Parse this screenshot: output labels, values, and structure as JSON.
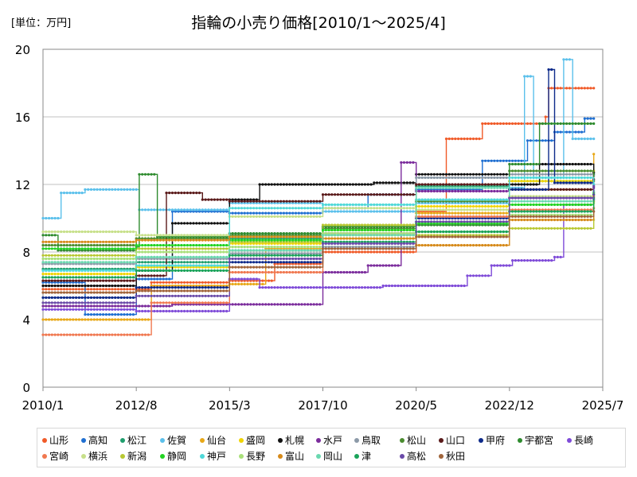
{
  "chart_data": {
    "type": "line",
    "title": "指輪の小売り価格[2010/1～2025/4]",
    "unit_label": "[単位：万円]",
    "xlabel": "",
    "ylabel": "",
    "x_ticks": [
      "2010/1",
      "2012/8",
      "2015/3",
      "2017/10",
      "2020/5",
      "2022/12",
      "2025/7"
    ],
    "y_ticks": [
      0,
      4,
      8,
      12,
      16,
      20
    ],
    "ylim": [
      0,
      20
    ],
    "xlim": [
      "2010/1",
      "2025/7"
    ],
    "grid": "horizontal",
    "legend_position": "bottom",
    "series": [
      {
        "name": "山形",
        "color": "#f05a28",
        "points": [
          [
            "2010/1",
            5.8
          ],
          [
            "2012/8",
            5.8
          ],
          [
            "2013/1",
            6.2
          ],
          [
            "2015/3",
            6.3
          ],
          [
            "2016/6",
            7.3
          ],
          [
            "2017/10",
            8.0
          ],
          [
            "2020/5",
            10.4
          ],
          [
            "2021/3",
            14.7
          ],
          [
            "2022/3",
            15.6
          ],
          [
            "2023/12",
            16.0
          ],
          [
            "2024/1",
            17.7
          ],
          [
            "2025/4",
            17.7
          ]
        ]
      },
      {
        "name": "高知",
        "color": "#1f6fd1",
        "points": [
          [
            "2010/1",
            6.2
          ],
          [
            "2011/3",
            4.3
          ],
          [
            "2012/8",
            6.4
          ],
          [
            "2013/8",
            10.4
          ],
          [
            "2015/3",
            10.3
          ],
          [
            "2017/10",
            10.6
          ],
          [
            "2019/1",
            11.4
          ],
          [
            "2020/5",
            11.7
          ],
          [
            "2022/3",
            13.4
          ],
          [
            "2023/6",
            14.6
          ],
          [
            "2024/3",
            15.1
          ],
          [
            "2025/1",
            15.9
          ],
          [
            "2025/4",
            15.9
          ]
        ]
      },
      {
        "name": "松江",
        "color": "#1f9e6d",
        "points": [
          [
            "2010/1",
            7.0
          ],
          [
            "2012/8",
            7.4
          ],
          [
            "2015/3",
            8.8
          ],
          [
            "2017/10",
            9.1
          ],
          [
            "2020/5",
            11.9
          ],
          [
            "2022/12",
            12.2
          ],
          [
            "2025/4",
            12.6
          ]
        ]
      },
      {
        "name": "佐賀",
        "color": "#5bc0eb",
        "points": [
          [
            "2010/1",
            10.0
          ],
          [
            "2010/7",
            11.5
          ],
          [
            "2011/3",
            11.7
          ],
          [
            "2012/8",
            11.7
          ],
          [
            "2012/9",
            10.5
          ],
          [
            "2015/3",
            10.9
          ],
          [
            "2017/10",
            10.4
          ],
          [
            "2020/5",
            10.9
          ],
          [
            "2022/12",
            11.8
          ],
          [
            "2023/5",
            18.4
          ],
          [
            "2023/8",
            12.4
          ],
          [
            "2024/6",
            19.4
          ],
          [
            "2024/9",
            14.7
          ],
          [
            "2025/4",
            14.7
          ]
        ]
      },
      {
        "name": "仙台",
        "color": "#e8a817",
        "points": [
          [
            "2010/1",
            4.0
          ],
          [
            "2012/8",
            4.0
          ],
          [
            "2013/1",
            6.0
          ],
          [
            "2015/3",
            6.1
          ],
          [
            "2016/3",
            8.2
          ],
          [
            "2017/10",
            9.3
          ],
          [
            "2020/5",
            10.3
          ],
          [
            "2022/12",
            11.7
          ],
          [
            "2025/4",
            13.8
          ]
        ]
      },
      {
        "name": "盛岡",
        "color": "#f0d400",
        "points": [
          [
            "2010/1",
            6.7
          ],
          [
            "2012/8",
            7.1
          ],
          [
            "2015/3",
            8.5
          ],
          [
            "2017/10",
            9.0
          ],
          [
            "2020/5",
            10.7
          ],
          [
            "2022/12",
            12.2
          ],
          [
            "2025/4",
            12.8
          ]
        ]
      },
      {
        "name": "札幌",
        "color": "#111111",
        "points": [
          [
            "2010/1",
            6.0
          ],
          [
            "2012/8",
            6.9
          ],
          [
            "2013/8",
            9.7
          ],
          [
            "2015/3",
            11.1
          ],
          [
            "2016/1",
            12.0
          ],
          [
            "2017/10",
            12.0
          ],
          [
            "2019/3",
            12.1
          ],
          [
            "2020/5",
            12.6
          ],
          [
            "2022/12",
            12.0
          ],
          [
            "2023/10",
            13.2
          ],
          [
            "2025/4",
            12.7
          ]
        ]
      },
      {
        "name": "水戸",
        "color": "#7b2c9c",
        "points": [
          [
            "2010/1",
            4.8
          ],
          [
            "2012/8",
            4.8
          ],
          [
            "2013/8",
            4.9
          ],
          [
            "2015/3",
            4.9
          ],
          [
            "2017/8",
            4.9
          ],
          [
            "2017/10",
            6.8
          ],
          [
            "2019/1",
            7.2
          ],
          [
            "2019/12",
            13.3
          ],
          [
            "2020/5",
            11.6
          ],
          [
            "2022/12",
            11.2
          ],
          [
            "2025/4",
            11.8
          ]
        ]
      },
      {
        "name": "鳥取",
        "color": "#8c9aa8",
        "points": [
          [
            "2010/1",
            7.3
          ],
          [
            "2012/8",
            7.6
          ],
          [
            "2015/3",
            7.9
          ],
          [
            "2017/10",
            8.3
          ],
          [
            "2020/5",
            12.4
          ],
          [
            "2022/12",
            12.6
          ],
          [
            "2025/4",
            12.5
          ]
        ]
      },
      {
        "name": "松山",
        "color": "#4a8c2f",
        "points": [
          [
            "2010/1",
            8.4
          ],
          [
            "2012/8",
            8.8
          ],
          [
            "2015/3",
            9.0
          ],
          [
            "2017/10",
            9.4
          ],
          [
            "2020/5",
            11.0
          ],
          [
            "2022/12",
            12.8
          ],
          [
            "2025/4",
            12.2
          ]
        ]
      },
      {
        "name": "山口",
        "color": "#5a1a1a",
        "points": [
          [
            "2010/1",
            6.3
          ],
          [
            "2012/8",
            6.6
          ],
          [
            "2013/6",
            11.5
          ],
          [
            "2014/6",
            11.1
          ],
          [
            "2015/3",
            11.0
          ],
          [
            "2017/10",
            11.4
          ],
          [
            "2020/5",
            12.0
          ],
          [
            "2022/12",
            11.7
          ],
          [
            "2025/4",
            12.3
          ]
        ]
      },
      {
        "name": "甲府",
        "color": "#0d2a8a",
        "points": [
          [
            "2010/1",
            5.3
          ],
          [
            "2012/8",
            5.9
          ],
          [
            "2015/3",
            7.4
          ],
          [
            "2017/10",
            9.1
          ],
          [
            "2020/5",
            10.0
          ],
          [
            "2022/12",
            11.7
          ],
          [
            "2024/1",
            18.8
          ],
          [
            "2024/3",
            12.1
          ],
          [
            "2025/4",
            11.4
          ]
        ]
      },
      {
        "name": "宇都宮",
        "color": "#2e8b2e",
        "points": [
          [
            "2010/1",
            9.0
          ],
          [
            "2010/6",
            8.1
          ],
          [
            "2012/8",
            8.3
          ],
          [
            "2012/9",
            12.6
          ],
          [
            "2013/3",
            8.9
          ],
          [
            "2015/3",
            9.1
          ],
          [
            "2017/10",
            9.5
          ],
          [
            "2020/5",
            9.6
          ],
          [
            "2022/12",
            13.2
          ],
          [
            "2023/10",
            15.6
          ],
          [
            "2025/4",
            15.6
          ]
        ]
      },
      {
        "name": "長崎",
        "color": "#7f4bd8",
        "points": [
          [
            "2010/1",
            4.6
          ],
          [
            "2012/8",
            4.5
          ],
          [
            "2015/3",
            6.4
          ],
          [
            "2016/1",
            5.9
          ],
          [
            "2017/10",
            5.9
          ],
          [
            "2019/6",
            6.0
          ],
          [
            "2021/10",
            6.6
          ],
          [
            "2022/6",
            7.2
          ],
          [
            "2023/1",
            7.5
          ],
          [
            "2024/3",
            7.7
          ],
          [
            "2024/6",
            10.8
          ],
          [
            "2025/4",
            11.1
          ]
        ]
      },
      {
        "name": "宮崎",
        "color": "#f07850",
        "points": [
          [
            "2010/1",
            3.1
          ],
          [
            "2012/8",
            3.1
          ],
          [
            "2013/1",
            5.0
          ],
          [
            "2015/3",
            6.8
          ],
          [
            "2017/10",
            9.1
          ],
          [
            "2020/5",
            10.1
          ],
          [
            "2022/12",
            10.5
          ],
          [
            "2025/4",
            10.6
          ]
        ]
      },
      {
        "name": "横浜",
        "color": "#c7e08a",
        "points": [
          [
            "2010/1",
            9.2
          ],
          [
            "2012/8",
            9.0
          ],
          [
            "2015/3",
            10.1
          ],
          [
            "2017/10",
            10.6
          ],
          [
            "2020/5",
            10.5
          ],
          [
            "2022/12",
            11.3
          ],
          [
            "2025/4",
            9.9
          ]
        ]
      },
      {
        "name": "新潟",
        "color": "#b8c832",
        "points": [
          [
            "2010/1",
            7.8
          ],
          [
            "2012/8",
            8.2
          ],
          [
            "2015/3",
            8.6
          ],
          [
            "2017/10",
            9.6
          ],
          [
            "2020/5",
            9.0
          ],
          [
            "2022/12",
            9.4
          ],
          [
            "2025/4",
            11.0
          ]
        ]
      },
      {
        "name": "静岡",
        "color": "#22d322",
        "points": [
          [
            "2010/1",
            8.2
          ],
          [
            "2012/8",
            8.4
          ],
          [
            "2015/3",
            8.7
          ],
          [
            "2017/10",
            9.3
          ],
          [
            "2020/5",
            9.7
          ],
          [
            "2022/12",
            10.8
          ],
          [
            "2025/4",
            11.5
          ]
        ]
      },
      {
        "name": "神戸",
        "color": "#4fd8d8",
        "points": [
          [
            "2010/1",
            6.9
          ],
          [
            "2012/8",
            7.2
          ],
          [
            "2015/3",
            10.6
          ],
          [
            "2017/10",
            10.8
          ],
          [
            "2020/5",
            11.1
          ],
          [
            "2022/12",
            12.4
          ],
          [
            "2025/4",
            12.0
          ]
        ]
      },
      {
        "name": "長野",
        "color": "#a9e07a",
        "points": [
          [
            "2010/1",
            7.6
          ],
          [
            "2012/8",
            8.0
          ],
          [
            "2015/3",
            8.3
          ],
          [
            "2017/10",
            9.1
          ],
          [
            "2020/5",
            9.2
          ],
          [
            "2022/12",
            10.2
          ],
          [
            "2025/4",
            10.9
          ]
        ]
      },
      {
        "name": "富山",
        "color": "#d68a1a",
        "points": [
          [
            "2010/1",
            8.6
          ],
          [
            "2012/8",
            8.7
          ],
          [
            "2015/3",
            8.9
          ],
          [
            "2017/10",
            8.8
          ],
          [
            "2020/5",
            8.4
          ],
          [
            "2022/12",
            9.9
          ],
          [
            "2025/4",
            11.3
          ]
        ]
      },
      {
        "name": "岡山",
        "color": "#6ad8b0",
        "points": [
          [
            "2010/1",
            7.4
          ],
          [
            "2012/8",
            7.7
          ],
          [
            "2015/3",
            8.1
          ],
          [
            "2017/10",
            9.0
          ],
          [
            "2020/5",
            11.8
          ],
          [
            "2022/12",
            11.0
          ],
          [
            "2025/4",
            11.6
          ]
        ]
      },
      {
        "name": "津",
        "color": "#1aa35a",
        "points": [
          [
            "2010/1",
            6.5
          ],
          [
            "2012/8",
            6.9
          ],
          [
            "2015/3",
            7.8
          ],
          [
            "2017/10",
            8.6
          ],
          [
            "2020/5",
            9.2
          ],
          [
            "2022/12",
            10.4
          ],
          [
            "2025/4",
            11.2
          ]
        ]
      },
      {
        "name": "高松",
        "color": "#6a4aa8",
        "points": [
          [
            "2010/1",
            5.0
          ],
          [
            "2012/8",
            5.4
          ],
          [
            "2015/3",
            7.6
          ],
          [
            "2017/10",
            8.5
          ],
          [
            "2020/5",
            9.8
          ],
          [
            "2022/12",
            11.2
          ],
          [
            "2025/4",
            11.9
          ]
        ]
      },
      {
        "name": "秋田",
        "color": "#a0643a",
        "points": [
          [
            "2010/1",
            5.6
          ],
          [
            "2012/8",
            5.7
          ],
          [
            "2015/3",
            7.1
          ],
          [
            "2017/10",
            8.2
          ],
          [
            "2020/5",
            8.9
          ],
          [
            "2022/12",
            10.1
          ],
          [
            "2025/4",
            10.4
          ]
        ]
      }
    ]
  }
}
